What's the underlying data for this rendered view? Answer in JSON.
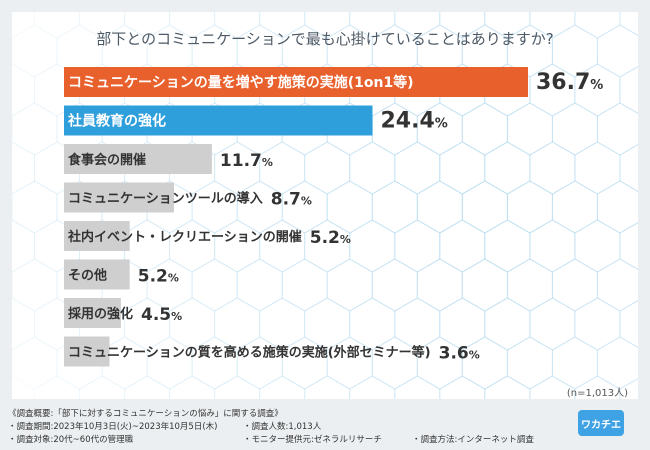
{
  "title": "部下とのコミュニケーションで最も心掛けていることはありますか?",
  "sample_note": "(n=1,013人)",
  "footer": {
    "summary": "《調査概要:「部下に対するコミュニケーションの悩み」に関する調査》",
    "period": "・調査期間:2023年10月3日(火)~2023年10月5日(木)",
    "count": "・調査人数:1,013人",
    "target": "・調査対象:20代~60代の管理職",
    "provider": "・モニター提供元:ゼネラルリサーチ",
    "method": "・調査方法:インターネット調査"
  },
  "logo": "ワカチエ",
  "colors": {
    "top1": "#e8602c",
    "top2": "#2f9fdc",
    "other": "#cfcfcf",
    "label_dark": "#333333"
  },
  "chart_data": {
    "type": "bar",
    "orientation": "horizontal",
    "unit": "%",
    "categories": [
      "コミュニケーションの量を増やす施策の実施(1on1等)",
      "社員教育の強化",
      "食事会の開催",
      "コミュニケーションツールの導入",
      "社内イベント・レクリエーションの開催",
      "その他",
      "採用の強化",
      "コミュニケーションの質を高める施策の実施(外部セミナー等)"
    ],
    "values": [
      36.7,
      24.4,
      11.7,
      8.7,
      5.2,
      5.2,
      4.5,
      3.6
    ],
    "value_labels": [
      "36.7%",
      "24.4%",
      "11.7%",
      "8.7%",
      "5.2%",
      "5.2%",
      "4.5%",
      "3.6%"
    ],
    "xlim": [
      0,
      36.7
    ],
    "grid": false,
    "legend": "none"
  }
}
